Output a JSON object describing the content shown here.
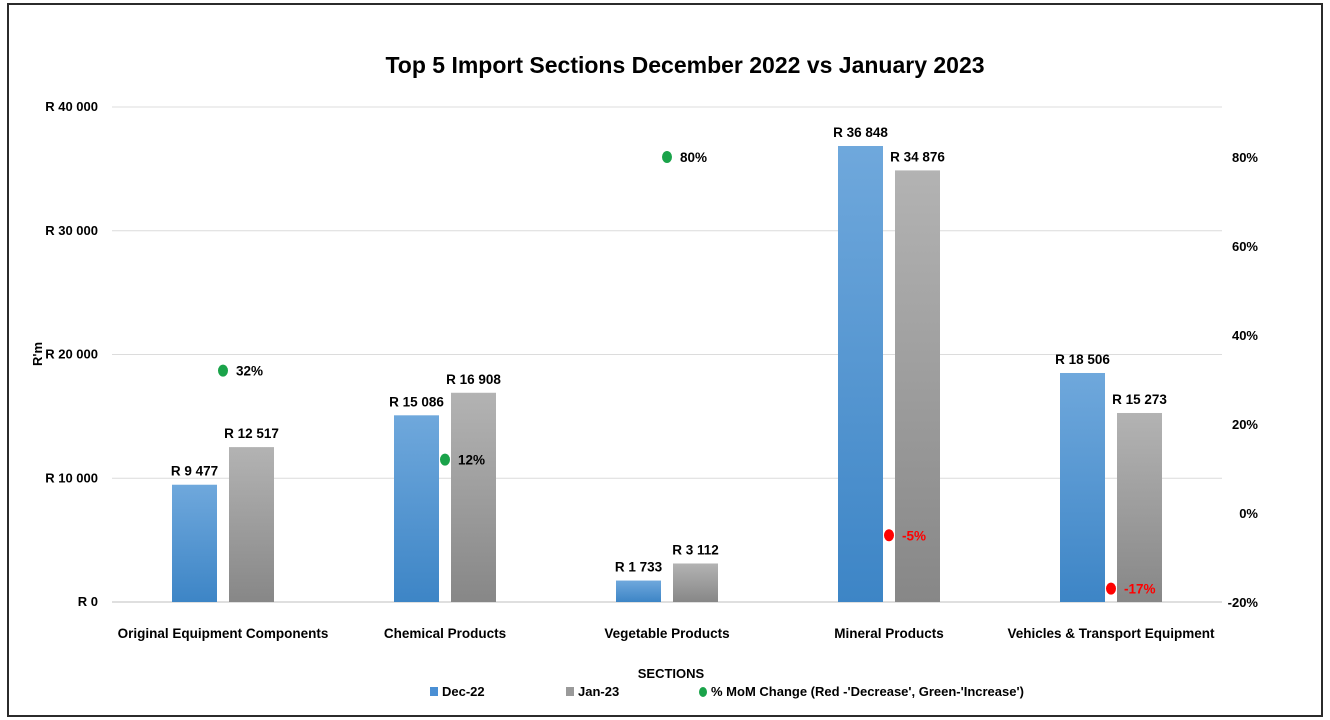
{
  "chart_data": {
    "type": "bar",
    "title": "Top 5 Import Sections December 2022 vs January 2023",
    "xlabel": "SECTIONS",
    "ylabel": "R'm",
    "categories": [
      "Original Equipment Components",
      "Chemical Products",
      "Vegetable Products",
      "Mineral Products",
      "Vehicles & Transport Equipment"
    ],
    "series": [
      {
        "name": "Dec-22",
        "values": [
          9477,
          15086,
          1733,
          36848,
          18506
        ],
        "labels": [
          "R 9 477",
          "R 15 086",
          "R 1 733",
          "R 36 848",
          "R 18 506"
        ],
        "color": "#4a8fd4"
      },
      {
        "name": "Jan-23",
        "values": [
          12517,
          16908,
          3112,
          34876,
          15273
        ],
        "labels": [
          "R 12 517",
          "R 16 908",
          "R 3 112",
          "R 34 876",
          "R 15 273"
        ],
        "color": "#9a9a9a"
      }
    ],
    "secondary_series": {
      "name": "% MoM Change (Red -'Decrease', Green-'Increase')",
      "type": "scatter",
      "axis": "right",
      "values": [
        32,
        12,
        80,
        -5,
        -17
      ],
      "labels": [
        "32%",
        "12%",
        "80%",
        "-5%",
        "-17%"
      ],
      "increase_color": "#1aa34a",
      "decrease_color": "#ff0000"
    },
    "ylim": [
      0,
      40000
    ],
    "y_ticks": [
      "R 0",
      "R 10 000",
      "R 20 000",
      "R 30 000",
      "R 40 000"
    ],
    "y2lim": [
      -20,
      90
    ],
    "y2_ticks": [
      "-20%",
      "0%",
      "20%",
      "40%",
      "60%",
      "80%"
    ],
    "grid": true,
    "legend_position": "bottom"
  }
}
